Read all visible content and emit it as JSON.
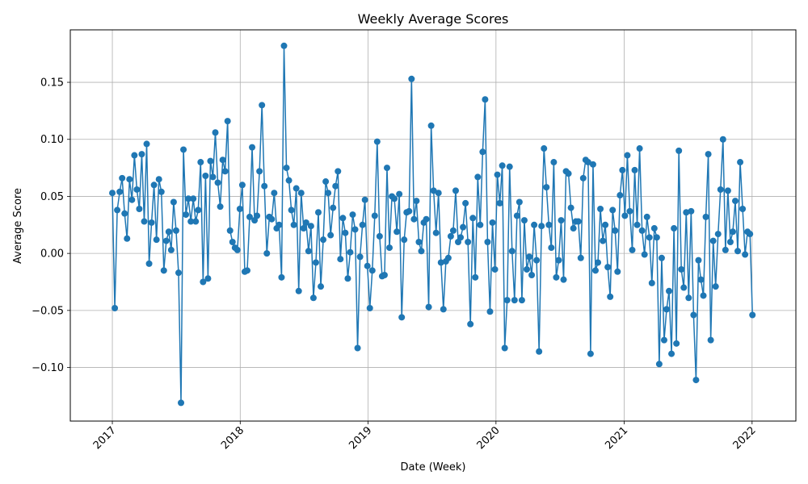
{
  "chart_data": {
    "type": "line",
    "title": "Weekly Average Scores",
    "xlabel": "Date (Week)",
    "ylabel": "Average Score",
    "grid": true,
    "line_color": "#1f77b4",
    "marker": "circle",
    "x_start": "2017-01-01",
    "x_step_days": 7,
    "xlim": [
      "2016-09-03",
      "2022-05-06"
    ],
    "ylim": [
      -0.147,
      0.196
    ],
    "x_ticks": [
      {
        "date": "2017-01-01",
        "label": "2017"
      },
      {
        "date": "2018-01-01",
        "label": "2018"
      },
      {
        "date": "2019-01-01",
        "label": "2019"
      },
      {
        "date": "2020-01-01",
        "label": "2020"
      },
      {
        "date": "2021-01-01",
        "label": "2021"
      },
      {
        "date": "2022-01-01",
        "label": "2022"
      }
    ],
    "y_ticks": [
      {
        "value": -0.1,
        "label": "−0.10"
      },
      {
        "value": -0.05,
        "label": "−0.05"
      },
      {
        "value": 0.0,
        "label": "0.00"
      },
      {
        "value": 0.05,
        "label": "0.05"
      },
      {
        "value": 0.1,
        "label": "0.10"
      },
      {
        "value": 0.15,
        "label": "0.15"
      }
    ],
    "series": [
      {
        "values": [
          0.053,
          -0.048,
          0.038,
          0.054,
          0.066,
          0.035,
          0.013,
          0.065,
          0.047,
          0.086,
          0.056,
          0.039,
          0.087,
          0.028,
          0.096,
          -0.009,
          0.027,
          0.06,
          0.012,
          0.065,
          0.054,
          -0.015,
          0.011,
          0.019,
          0.003,
          0.045,
          0.02,
          -0.017,
          -0.131,
          0.091,
          0.034,
          0.048,
          0.028,
          0.048,
          0.028,
          0.038,
          0.08,
          -0.025,
          0.068,
          -0.022,
          0.081,
          0.067,
          0.106,
          0.062,
          0.041,
          0.082,
          0.072,
          0.116,
          0.02,
          0.01,
          0.005,
          0.003,
          0.039,
          0.06,
          -0.016,
          -0.015,
          0.032,
          0.093,
          0.029,
          0.033,
          0.072,
          0.13,
          0.059,
          0.0,
          0.032,
          0.03,
          0.053,
          0.022,
          0.025,
          -0.021,
          0.182,
          0.075,
          0.064,
          0.038,
          0.025,
          0.057,
          -0.033,
          0.053,
          0.022,
          0.027,
          0.002,
          0.024,
          -0.039,
          -0.008,
          0.036,
          -0.029,
          0.012,
          0.063,
          0.053,
          0.016,
          0.04,
          0.059,
          0.072,
          -0.005,
          0.031,
          0.018,
          -0.022,
          0.001,
          0.034,
          0.021,
          -0.083,
          -0.003,
          0.025,
          0.047,
          -0.011,
          -0.048,
          -0.015,
          0.033,
          0.098,
          0.015,
          -0.02,
          -0.019,
          0.075,
          0.005,
          0.05,
          0.048,
          0.019,
          0.052,
          -0.056,
          0.012,
          0.036,
          0.037,
          0.153,
          0.03,
          0.046,
          0.01,
          0.002,
          0.027,
          0.03,
          -0.047,
          0.112,
          0.055,
          0.018,
          0.053,
          -0.008,
          -0.049,
          -0.007,
          -0.004,
          0.015,
          0.02,
          0.055,
          0.01,
          0.014,
          0.023,
          0.044,
          0.01,
          -0.062,
          0.031,
          -0.021,
          0.067,
          0.025,
          0.089,
          0.135,
          0.01,
          -0.051,
          0.027,
          -0.014,
          0.069,
          0.044,
          0.077,
          -0.083,
          -0.041,
          0.076,
          0.002,
          -0.041,
          0.033,
          0.045,
          -0.041,
          0.029,
          -0.014,
          -0.003,
          -0.019,
          0.025,
          -0.006,
          -0.086,
          0.024,
          0.092,
          0.058,
          0.025,
          0.005,
          0.08,
          -0.021,
          -0.006,
          0.029,
          -0.023,
          0.072,
          0.07,
          0.04,
          0.022,
          0.028,
          0.028,
          -0.004,
          0.066,
          0.082,
          0.08,
          -0.088,
          0.078,
          -0.015,
          -0.008,
          0.039,
          0.011,
          0.025,
          -0.012,
          -0.038,
          0.038,
          0.02,
          -0.016,
          0.051,
          0.073,
          0.033,
          0.086,
          0.037,
          0.003,
          0.073,
          0.025,
          0.092,
          0.02,
          -0.001,
          0.032,
          0.014,
          -0.026,
          0.022,
          0.014,
          -0.097,
          -0.004,
          -0.076,
          -0.049,
          -0.033,
          -0.088,
          0.022,
          -0.079,
          0.09,
          -0.014,
          -0.03,
          0.036,
          -0.039,
          0.037,
          -0.054,
          -0.111,
          -0.006,
          -0.023,
          -0.037,
          0.032,
          0.087,
          -0.076,
          0.011,
          -0.029,
          0.017,
          0.056,
          0.1,
          0.003,
          0.055,
          0.01,
          0.019,
          0.046,
          0.002,
          0.08,
          0.039,
          -0.001,
          0.019,
          0.017,
          -0.054
        ]
      }
    ]
  }
}
